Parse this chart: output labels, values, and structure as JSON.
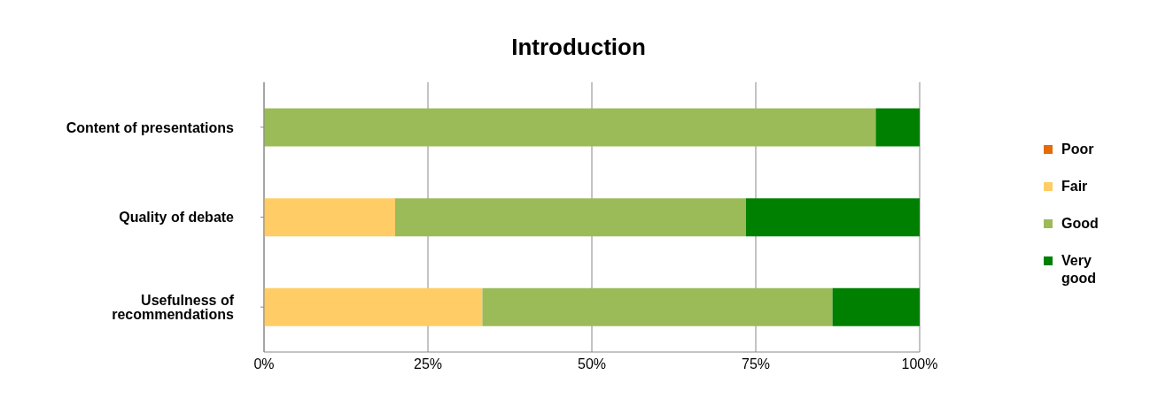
{
  "chart_data": {
    "type": "bar",
    "title": "Introduction",
    "orientation": "horizontal",
    "stacked": true,
    "categories": [
      "Content of presentations",
      "Quality of debate",
      "Usefulness of recommendations"
    ],
    "series": [
      {
        "name": "Poor",
        "color": "#e36c09",
        "values": [
          0,
          0,
          0
        ]
      },
      {
        "name": "Fair",
        "color": "#ffcc66",
        "values": [
          0,
          20,
          33.3
        ]
      },
      {
        "name": "Good",
        "color": "#9bbb59",
        "values": [
          93.3,
          53.5,
          53.4
        ]
      },
      {
        "name": "Very good",
        "color": "#008000",
        "values": [
          6.7,
          26.5,
          13.3
        ]
      }
    ],
    "xlim": [
      0,
      100
    ],
    "xticks": [
      {
        "value": 0,
        "label": "0%"
      },
      {
        "value": 25,
        "label": "25%"
      },
      {
        "value": 50,
        "label": "50%"
      },
      {
        "value": 75,
        "label": "75%"
      },
      {
        "value": 100,
        "label": "100%"
      }
    ],
    "grid": "x",
    "legend": "right"
  }
}
